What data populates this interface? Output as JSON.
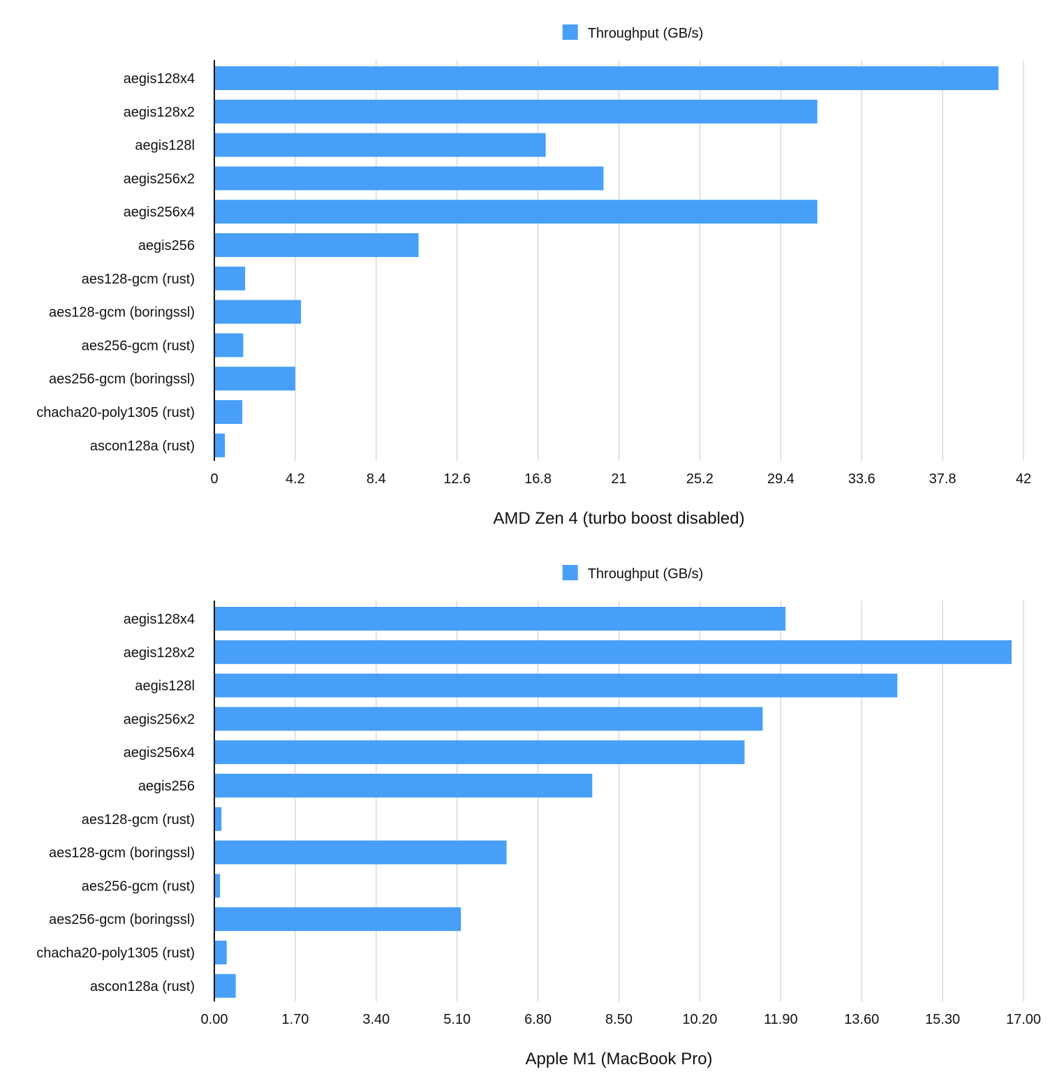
{
  "chart_data": [
    {
      "type": "bar",
      "orientation": "horizontal",
      "legend": "Throughput (GB/s)",
      "legend_position": "top-center",
      "bar_color": "#479ff8",
      "xlabel": "AMD Zen 4 (turbo boost disabled)",
      "xlim": [
        0,
        42
      ],
      "xticks": [
        "0",
        "4.2",
        "8.4",
        "12.6",
        "16.8",
        "21",
        "25.2",
        "29.4",
        "33.6",
        "37.8",
        "42"
      ],
      "grid": true,
      "categories": [
        "aegis128x4",
        "aegis128x2",
        "aegis128l",
        "aegis256x2",
        "aegis256x4",
        "aegis256",
        "aes128-gcm (rust)",
        "aes128-gcm (boringssl)",
        "aes256-gcm (rust)",
        "aes256-gcm (boringssl)",
        "chacha20-poly1305 (rust)",
        "ascon128a (rust)"
      ],
      "series": [
        {
          "name": "Throughput (GB/s)",
          "values": [
            40.7,
            31.3,
            17.2,
            20.2,
            31.3,
            10.6,
            1.6,
            4.5,
            1.5,
            4.2,
            1.45,
            0.55
          ]
        }
      ]
    },
    {
      "type": "bar",
      "orientation": "horizontal",
      "legend": "Throughput (GB/s)",
      "legend_position": "top-center",
      "bar_color": "#479ff8",
      "xlabel": "Apple M1 (MacBook Pro)",
      "xlim": [
        0,
        17
      ],
      "xticks": [
        "0.00",
        "1.70",
        "3.40",
        "5.10",
        "6.80",
        "8.50",
        "10.20",
        "11.90",
        "13.60",
        "15.30",
        "17.00"
      ],
      "grid": true,
      "categories": [
        "aegis128x4",
        "aegis128x2",
        "aegis128l",
        "aegis256x2",
        "aegis256x4",
        "aegis256",
        "aes128-gcm (rust)",
        "aes128-gcm (boringssl)",
        "aes256-gcm (rust)",
        "aes256-gcm (boringssl)",
        "chacha20-poly1305 (rust)",
        "ascon128a (rust)"
      ],
      "series": [
        {
          "name": "Throughput (GB/s)",
          "values": [
            12.0,
            16.75,
            14.35,
            11.52,
            11.14,
            7.94,
            0.15,
            6.14,
            0.12,
            5.18,
            0.26,
            0.45
          ]
        }
      ]
    }
  ]
}
